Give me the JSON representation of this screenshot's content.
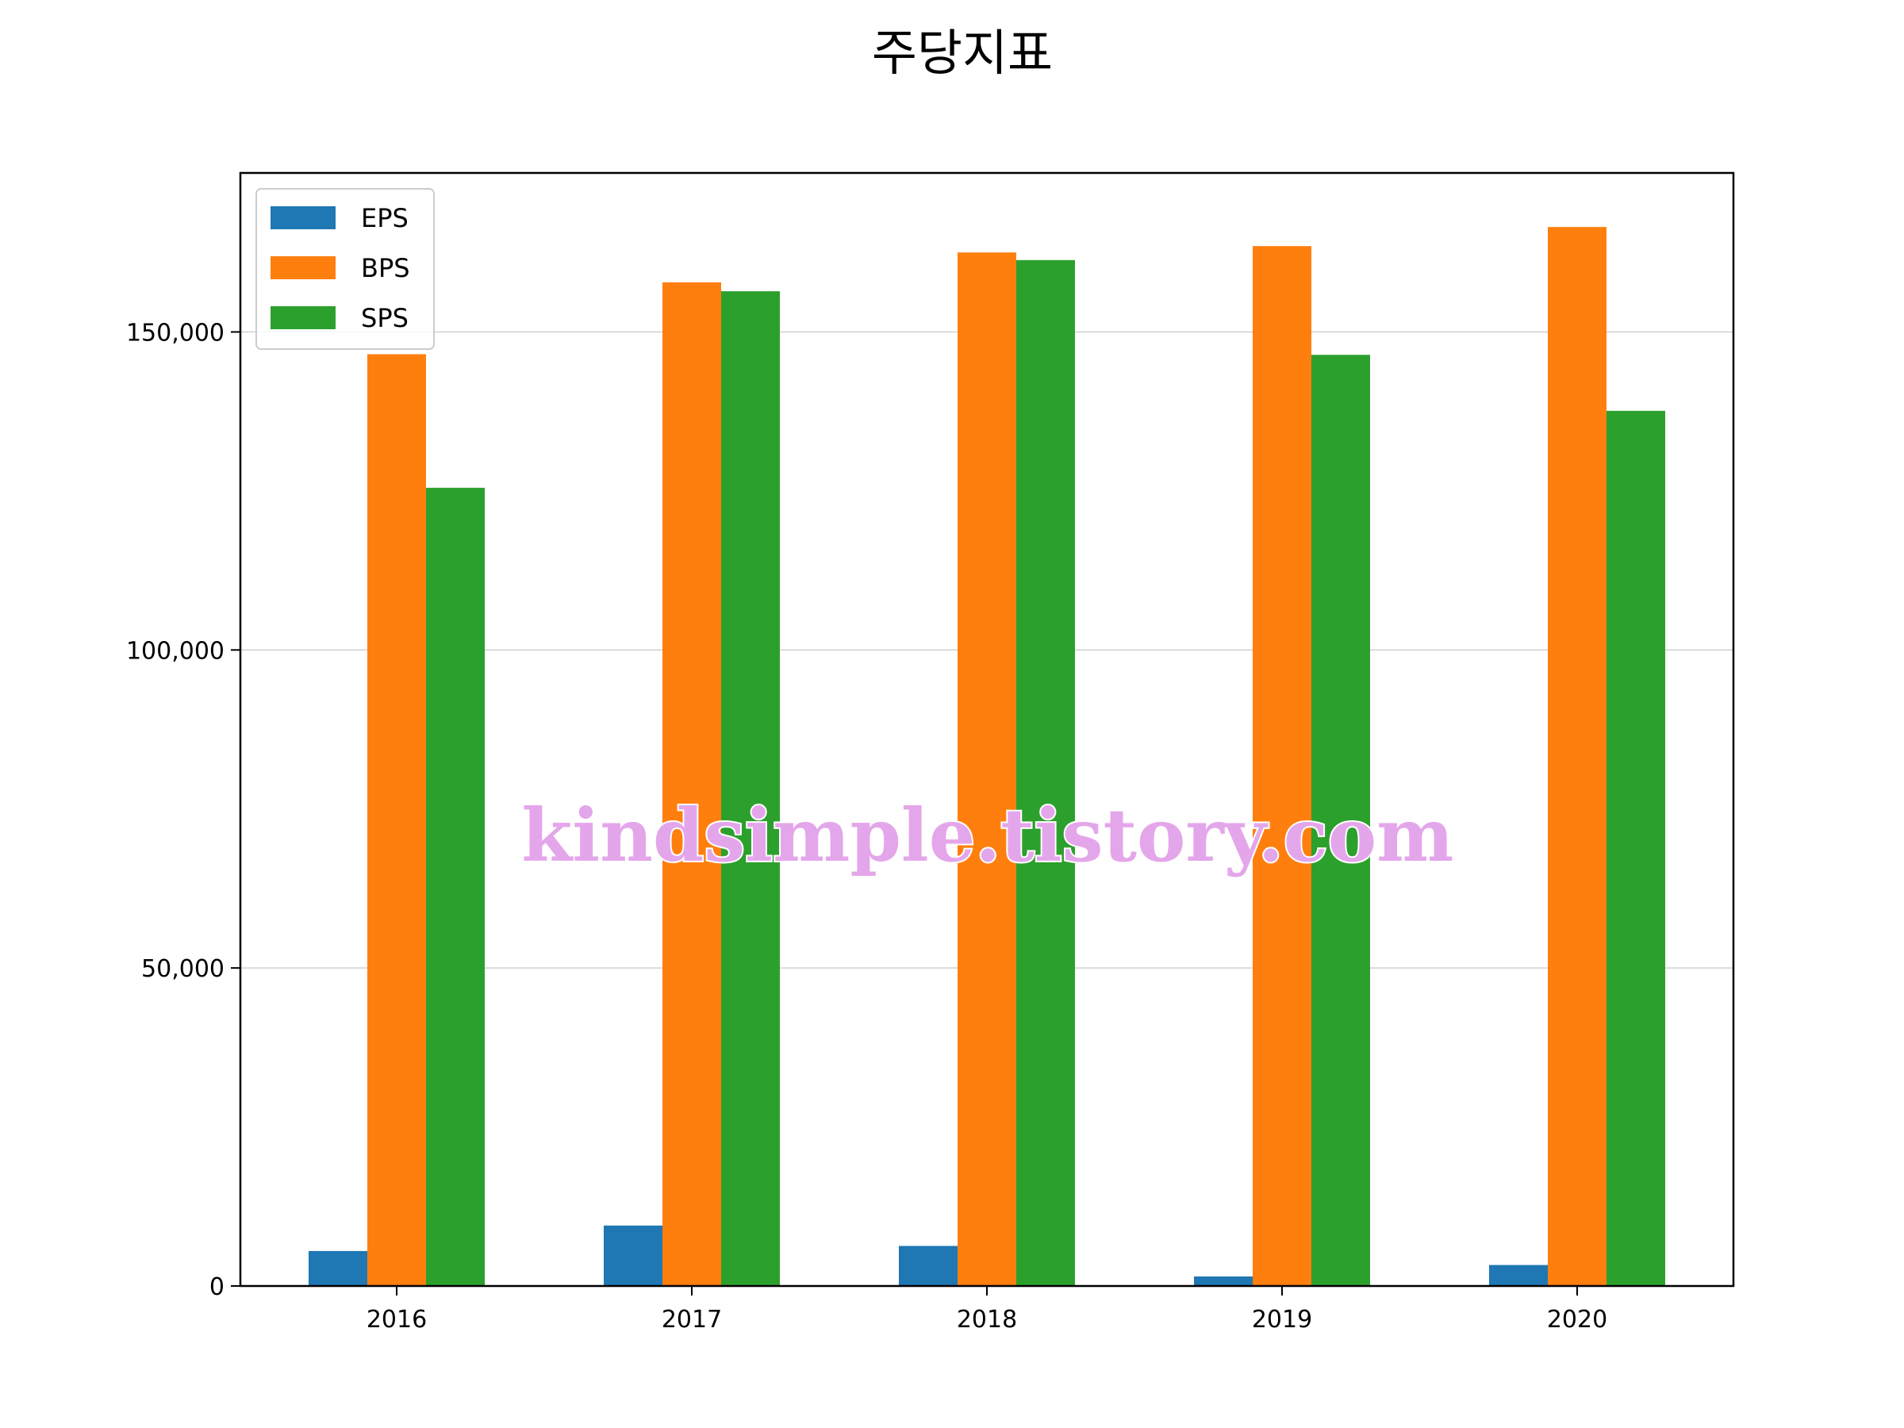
{
  "chart_data": {
    "type": "bar",
    "title": "주당지표",
    "categories": [
      "2016",
      "2017",
      "2018",
      "2019",
      "2020"
    ],
    "series": [
      {
        "name": "EPS",
        "color": "#1f77b4",
        "values": [
          5500,
          9500,
          6300,
          1500,
          3300
        ]
      },
      {
        "name": "BPS",
        "color": "#ff7f0e",
        "values": [
          146500,
          157800,
          162500,
          163500,
          166500
        ]
      },
      {
        "name": "SPS",
        "color": "#2ca02c",
        "values": [
          125500,
          156400,
          161300,
          146400,
          137600
        ]
      }
    ],
    "xlabel": "",
    "ylabel": "",
    "ylim": [
      0,
      175000
    ],
    "yticks": [
      {
        "value": 0,
        "label": "0"
      },
      {
        "value": 50000,
        "label": "50,000"
      },
      {
        "value": 100000,
        "label": "100,000"
      },
      {
        "value": 150000,
        "label": "150,000"
      }
    ],
    "grid": "horizontal",
    "legend_position": "top-left"
  },
  "watermark": "kindsimple.tistory.com"
}
